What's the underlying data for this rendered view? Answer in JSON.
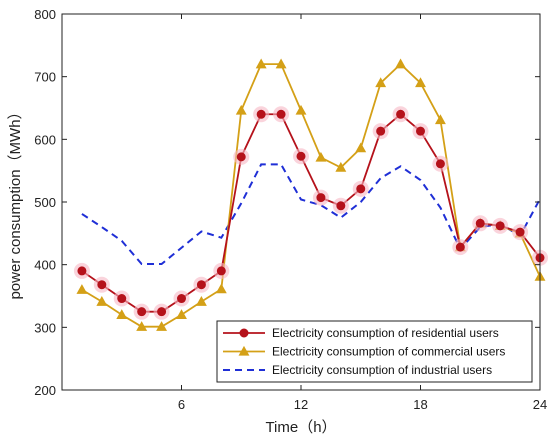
{
  "chart_data": {
    "type": "line",
    "xlabel": "Time（h）",
    "ylabel": "power consumption（MWh）",
    "xlim": [
      0,
      24
    ],
    "ylim": [
      200,
      800
    ],
    "xticks": [
      "6",
      "12",
      "18",
      "24"
    ],
    "yticks": [
      "200",
      "300",
      "400",
      "500",
      "600",
      "700",
      "800"
    ],
    "grid": false,
    "legend_position": "bottom-right",
    "x": [
      1,
      2,
      3,
      4,
      5,
      6,
      7,
      8,
      9,
      10,
      11,
      12,
      13,
      14,
      15,
      16,
      17,
      18,
      19,
      20,
      21,
      22,
      23,
      24
    ],
    "series": [
      {
        "name": "Electricity consumption of residential users",
        "color": "#b5121b",
        "marker": "circle",
        "values": [
          390,
          368,
          346,
          325,
          325,
          346,
          368,
          390,
          572,
          640,
          640,
          573,
          507,
          494,
          521,
          613,
          640,
          613,
          561,
          428,
          466,
          462,
          452,
          411
        ]
      },
      {
        "name": "Electricity consumption of commercial users",
        "color": "#d4a017",
        "marker": "triangle",
        "values": [
          360,
          341,
          320,
          301,
          301,
          320,
          341,
          361,
          646,
          720,
          720,
          646,
          571,
          555,
          586,
          690,
          720,
          690,
          631,
          428,
          466,
          462,
          450,
          381
        ]
      },
      {
        "name": "Electricity consumption of industrial users",
        "color": "#1f2fd6",
        "marker": "none",
        "dashed": true,
        "values": [
          481,
          460,
          438,
          401,
          401,
          427,
          453,
          443,
          498,
          560,
          560,
          504,
          495,
          475,
          500,
          538,
          557,
          535,
          491,
          425,
          460,
          465,
          446,
          505
        ]
      }
    ]
  }
}
